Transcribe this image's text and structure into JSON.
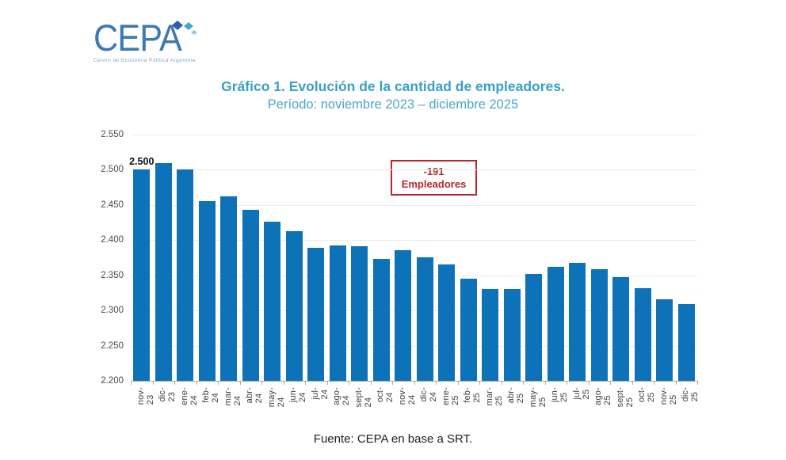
{
  "logo": {
    "name": "CEPA",
    "tagline": "Centro de Economía Política Argentina"
  },
  "title": "Gráfico 1. Evolución de la cantidad de empleadores.",
  "subtitle": "Período: noviembre 2023 – diciembre 2025",
  "annotation": {
    "value": "-191",
    "label": "Empleadores"
  },
  "source": "Fuente: CEPA en base a SRT.",
  "colors": {
    "bar": "#0e72b9",
    "title": "#3aa0c7",
    "annotation": "#b4282e",
    "logo": "#3d79b5",
    "gridline": "#ebebeb"
  },
  "chart_data": {
    "type": "bar",
    "title": "Gráfico 1. Evolución de la cantidad de empleadores.",
    "subtitle": "Período: noviembre 2023 – diciembre 2025",
    "xlabel": "",
    "ylabel": "",
    "ylim": [
      2200,
      2550
    ],
    "grid": true,
    "legend": false,
    "categories": [
      "nov-23",
      "dic-23",
      "ene-24",
      "feb-24",
      "mar-24",
      "abr-24",
      "may-24",
      "jun-24",
      "jul-24",
      "ago-24",
      "sept-24",
      "oct-24",
      "nov-24",
      "dic-24",
      "ene-25",
      "feb-25",
      "mar-25",
      "abr-25",
      "may-25",
      "jun-25",
      "jul-25",
      "ago-25",
      "sept-25",
      "oct-25",
      "nov-25",
      "dic-25"
    ],
    "values": [
      2500,
      2509,
      2501,
      2456,
      2462,
      2443,
      2426,
      2413,
      2389,
      2392,
      2391,
      2373,
      2386,
      2376,
      2365,
      2345,
      2331,
      2331,
      2352,
      2362,
      2368,
      2359,
      2347,
      2332,
      2316,
      2309
    ],
    "first_point_label": "2.500",
    "y_ticks": [
      {
        "label": "2.550",
        "value": 2550
      },
      {
        "label": "2.500",
        "value": 2500
      },
      {
        "label": "2.450",
        "value": 2450
      },
      {
        "label": "2.400",
        "value": 2400
      },
      {
        "label": "2.350",
        "value": 2350
      },
      {
        "label": "2.300",
        "value": 2300
      },
      {
        "label": "2.250",
        "value": 2250
      },
      {
        "label": "2.200",
        "value": 2200
      }
    ]
  }
}
